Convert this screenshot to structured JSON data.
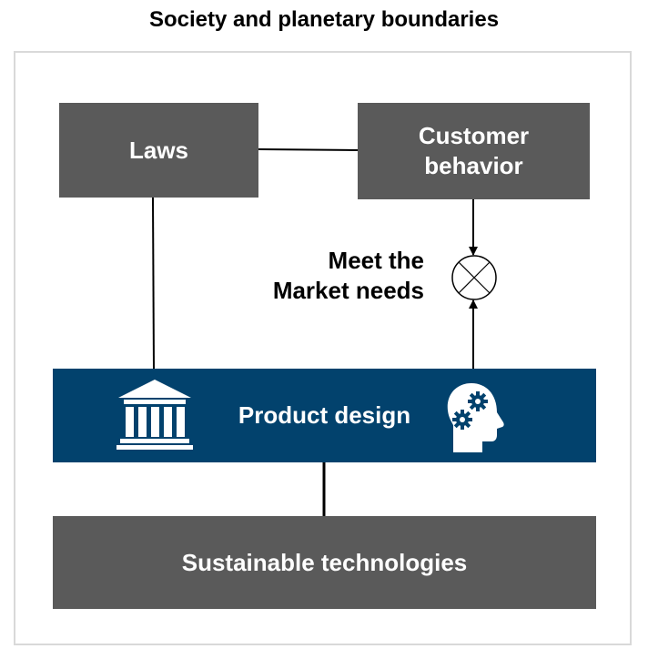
{
  "title": "Society and planetary boundaries",
  "boxes": {
    "laws": "Laws",
    "customer_behavior_line1": "Customer",
    "customer_behavior_line2": "behavior",
    "product_design": "Product design",
    "sustainable_technologies": "Sustainable technologies"
  },
  "junction_label": {
    "line1": "Meet the",
    "line2": "Market needs"
  },
  "icons": {
    "left": "bank-building-icon",
    "right": "head-gears-icon",
    "junction": "summing-junction-icon"
  },
  "colors": {
    "gray_box": "#5a5a5a",
    "product_box": "#02426d",
    "frame": "#d9d9d9"
  }
}
